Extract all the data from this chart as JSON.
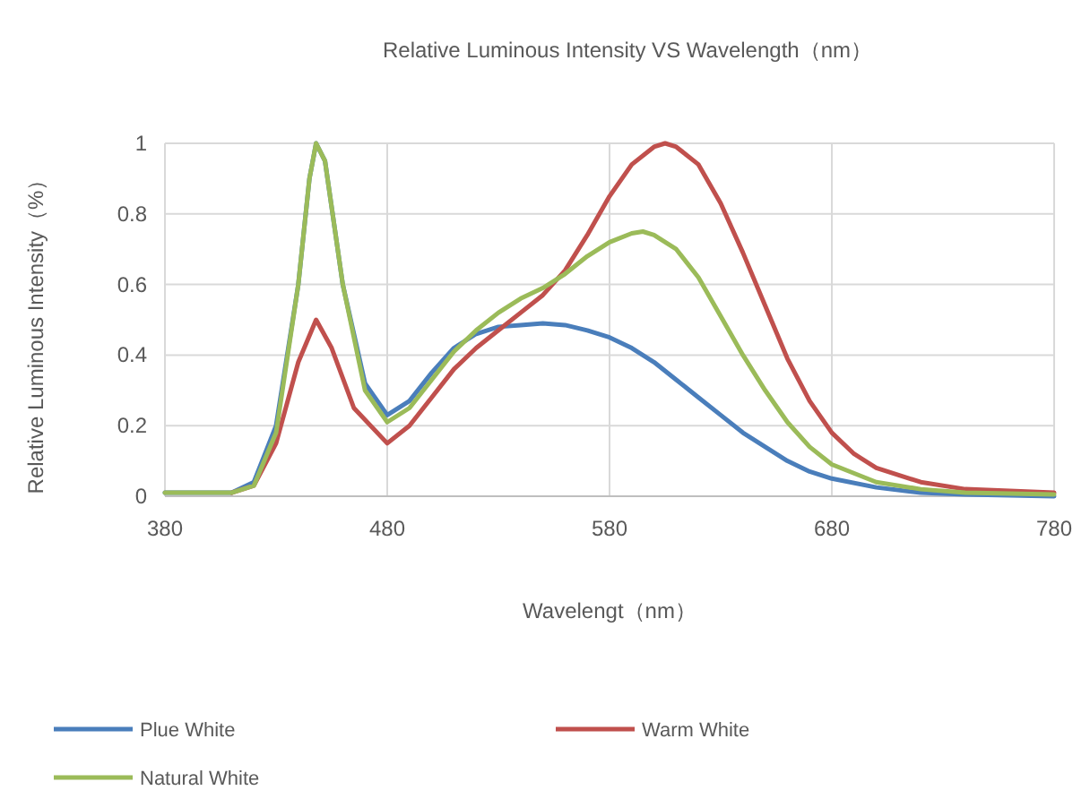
{
  "chart_data": {
    "type": "line",
    "title": "Relative Luminous Intensity VS Wavelength（nm）",
    "xlabel": "Wavelengt（nm）",
    "ylabel": "Relative Luminous Intensity（%）",
    "xlim": [
      380,
      780
    ],
    "ylim": [
      0,
      1
    ],
    "xticks": [
      380,
      480,
      580,
      680,
      780
    ],
    "yticks": [
      0,
      0.2,
      0.4,
      0.6,
      0.8,
      1
    ],
    "grid": true,
    "legend": "bottom",
    "series": [
      {
        "name": "Plue White",
        "color": "#4a7ebb",
        "x": [
          380,
          400,
          410,
          420,
          430,
          440,
          445,
          448,
          452,
          460,
          470,
          480,
          490,
          500,
          510,
          520,
          530,
          540,
          550,
          560,
          570,
          580,
          590,
          600,
          610,
          620,
          630,
          640,
          650,
          660,
          670,
          680,
          700,
          720,
          740,
          780
        ],
        "values": [
          0.01,
          0.01,
          0.01,
          0.04,
          0.2,
          0.6,
          0.9,
          1.0,
          0.95,
          0.6,
          0.32,
          0.23,
          0.27,
          0.35,
          0.42,
          0.46,
          0.48,
          0.485,
          0.49,
          0.485,
          0.47,
          0.45,
          0.42,
          0.38,
          0.33,
          0.28,
          0.23,
          0.18,
          0.14,
          0.1,
          0.07,
          0.05,
          0.025,
          0.01,
          0.005,
          0.0
        ]
      },
      {
        "name": "Warm White",
        "color": "#c0504d",
        "x": [
          410,
          420,
          430,
          440,
          448,
          455,
          465,
          480,
          490,
          500,
          510,
          520,
          530,
          540,
          550,
          560,
          570,
          580,
          590,
          600,
          605,
          610,
          620,
          630,
          640,
          650,
          660,
          670,
          680,
          690,
          700,
          720,
          740,
          760,
          780
        ],
        "values": [
          0.01,
          0.03,
          0.15,
          0.38,
          0.5,
          0.42,
          0.25,
          0.15,
          0.2,
          0.28,
          0.36,
          0.42,
          0.47,
          0.52,
          0.57,
          0.64,
          0.74,
          0.85,
          0.94,
          0.99,
          1.0,
          0.99,
          0.94,
          0.83,
          0.69,
          0.54,
          0.39,
          0.27,
          0.18,
          0.12,
          0.08,
          0.04,
          0.02,
          0.015,
          0.01
        ]
      },
      {
        "name": "Natural White",
        "color": "#9bbb59",
        "x": [
          380,
          400,
          410,
          420,
          430,
          440,
          445,
          448,
          452,
          460,
          470,
          480,
          490,
          500,
          510,
          520,
          530,
          540,
          550,
          560,
          570,
          580,
          590,
          595,
          600,
          610,
          620,
          630,
          640,
          650,
          660,
          670,
          680,
          700,
          720,
          740,
          780
        ],
        "values": [
          0.01,
          0.01,
          0.01,
          0.03,
          0.18,
          0.6,
          0.9,
          1.0,
          0.95,
          0.6,
          0.3,
          0.21,
          0.25,
          0.33,
          0.41,
          0.47,
          0.52,
          0.56,
          0.59,
          0.63,
          0.68,
          0.72,
          0.745,
          0.75,
          0.74,
          0.7,
          0.62,
          0.51,
          0.4,
          0.3,
          0.21,
          0.14,
          0.09,
          0.04,
          0.02,
          0.01,
          0.005
        ]
      }
    ]
  }
}
